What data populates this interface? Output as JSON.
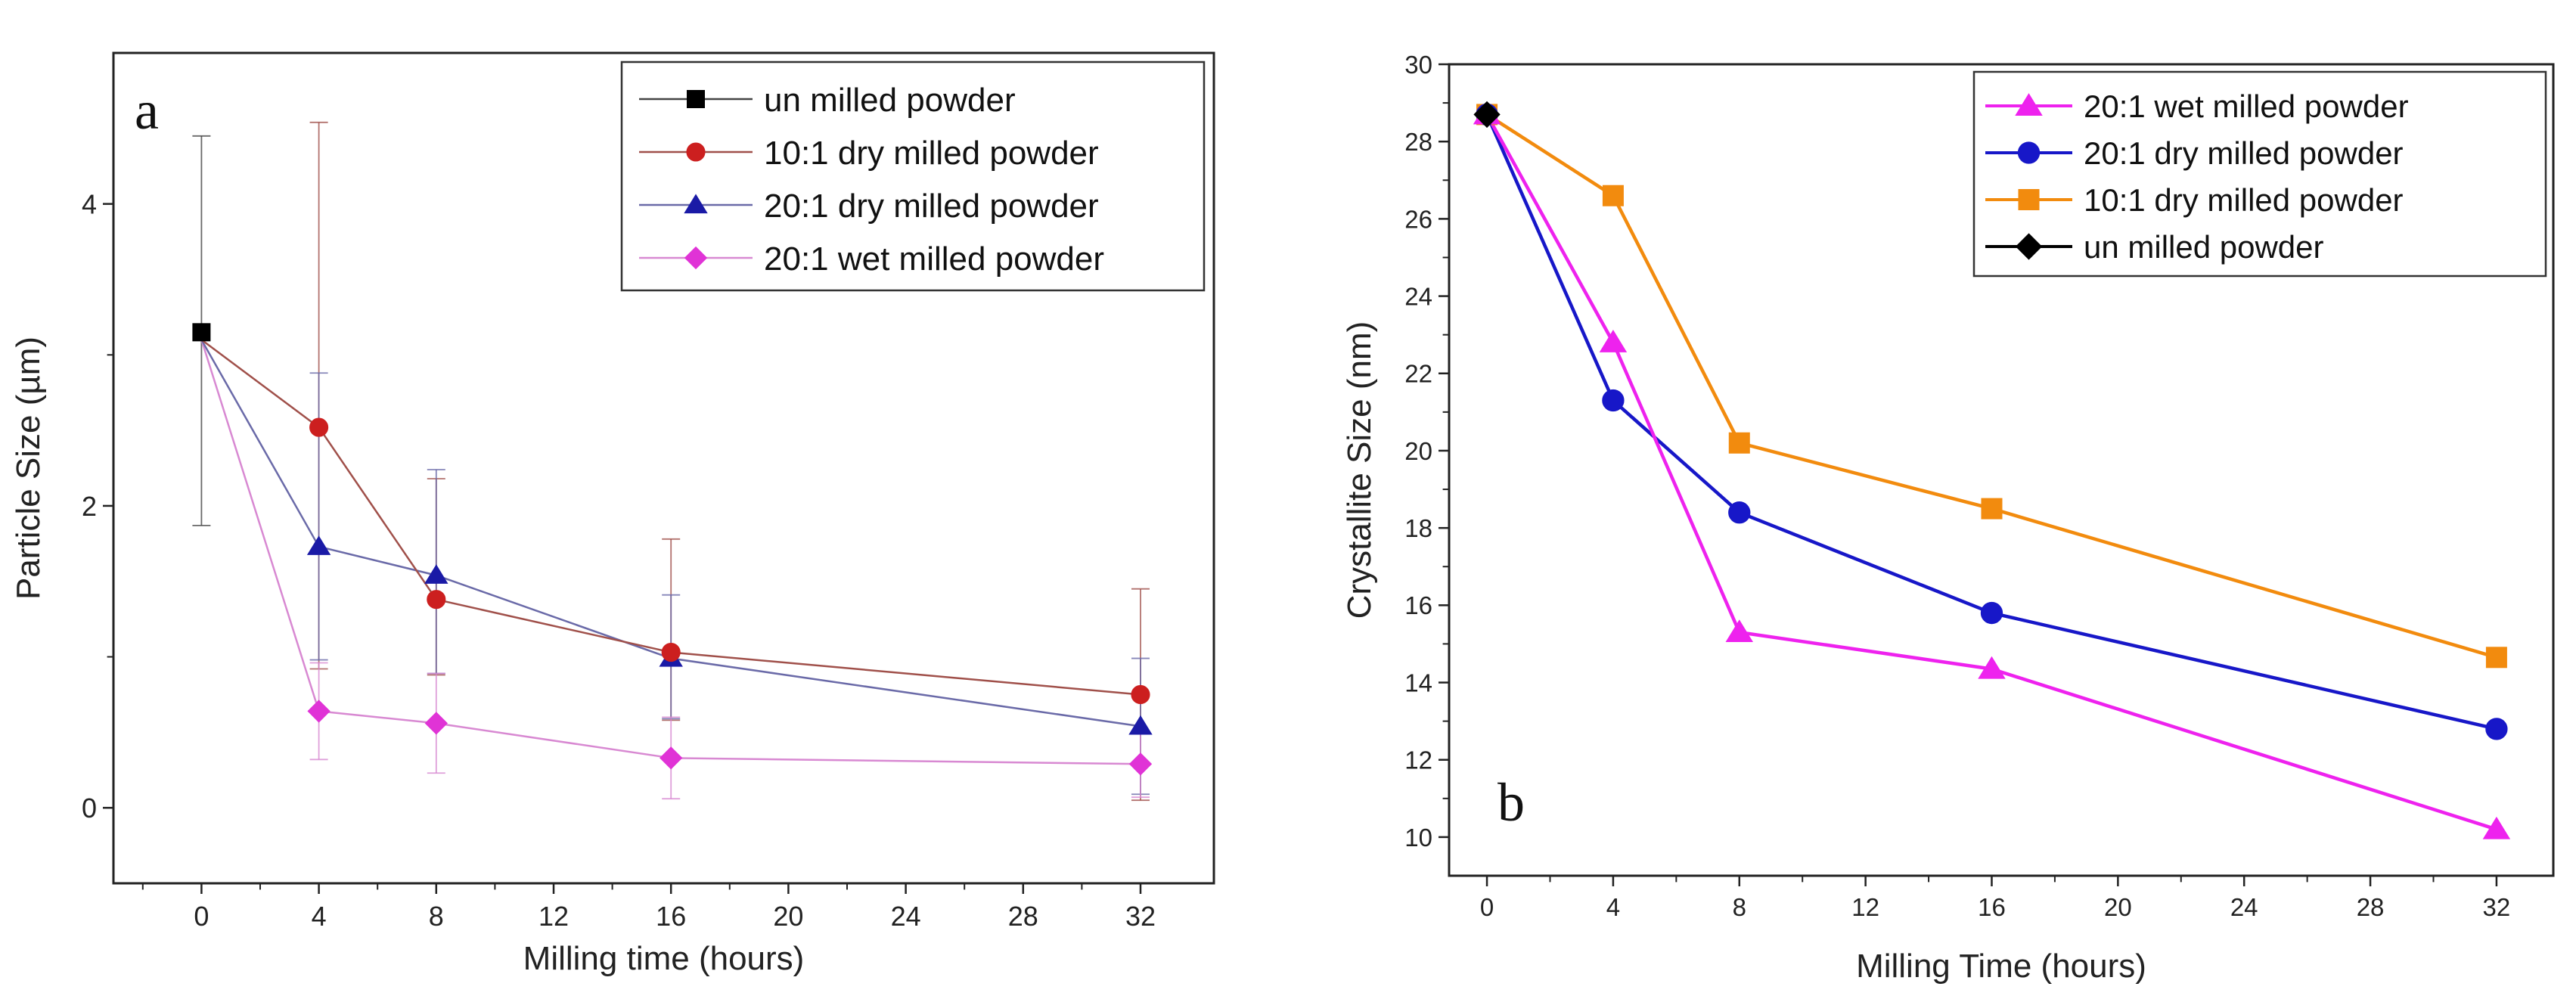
{
  "chart_data": [
    {
      "type": "line",
      "panel_label": "a",
      "title": "",
      "xlabel": "Milling time (hours)",
      "ylabel": "Particle Size (µm)",
      "xlim": [
        -3,
        34.5
      ],
      "ylim": [
        -0.5,
        5.0
      ],
      "xticks": [
        0,
        4,
        8,
        12,
        16,
        20,
        24,
        28,
        32
      ],
      "yticks": [
        0,
        2,
        4
      ],
      "x_tick_labels": [
        "0",
        "4",
        "8",
        "12",
        "16",
        "20",
        "24",
        "28",
        "32"
      ],
      "y_tick_labels": [
        "0",
        "2",
        "4"
      ],
      "legend_position": "top-right",
      "series": [
        {
          "name": "un milled powder",
          "color": "#000000",
          "line_color": "#444444",
          "marker": "square",
          "x": [
            0
          ],
          "values": [
            3.15
          ],
          "err_low": [
            1.28
          ],
          "err_high": [
            1.3
          ],
          "legend_only_line": true
        },
        {
          "name": "10:1 dry milled powder",
          "color": "#cc1f1f",
          "line_color": "#a0504a",
          "marker": "circle",
          "x": [
            0,
            4,
            8,
            16,
            32
          ],
          "values": [
            3.1,
            2.52,
            1.38,
            1.03,
            0.75
          ],
          "err_low": [
            0,
            1.6,
            0.5,
            0.45,
            0.7
          ],
          "err_high": [
            0,
            2.02,
            0.8,
            0.75,
            0.7
          ]
        },
        {
          "name": "20:1 dry milled powder",
          "color": "#1a1aa6",
          "line_color": "#6a6aa8",
          "marker": "triangle",
          "x": [
            0,
            4,
            8,
            16,
            32
          ],
          "values": [
            3.1,
            1.73,
            1.54,
            0.99,
            0.54
          ],
          "err_low": [
            0,
            0.75,
            0.65,
            0.4,
            0.45
          ],
          "err_high": [
            0,
            1.15,
            0.7,
            0.42,
            0.45
          ]
        },
        {
          "name": "20:1 wet milled powder",
          "color": "#e033d6",
          "line_color": "#d889d2",
          "marker": "diamond",
          "x": [
            0,
            4,
            8,
            16,
            32
          ],
          "values": [
            3.1,
            0.64,
            0.56,
            0.33,
            0.29
          ],
          "err_low": [
            0,
            0.32,
            0.33,
            0.27,
            0.22
          ],
          "err_high": [
            0,
            0.32,
            0.33,
            0.27,
            0.22
          ]
        }
      ]
    },
    {
      "type": "line",
      "panel_label": "b",
      "title": "",
      "xlabel": "Milling Time (hours)",
      "ylabel": "Crystallite Size (nm)",
      "xlim": [
        -1.2,
        33.8
      ],
      "ylim": [
        9,
        30
      ],
      "xticks": [
        0,
        4,
        8,
        12,
        16,
        20,
        24,
        28,
        32
      ],
      "yticks": [
        10,
        12,
        14,
        16,
        18,
        20,
        22,
        24,
        26,
        28,
        30
      ],
      "x_tick_labels": [
        "0",
        "4",
        "8",
        "12",
        "16",
        "20",
        "24",
        "28",
        "32"
      ],
      "y_tick_labels": [
        "10",
        "12",
        "14",
        "16",
        "18",
        "20",
        "22",
        "24",
        "26",
        "28",
        "30"
      ],
      "legend_position": "top-right",
      "series": [
        {
          "name": "20:1 wet milled powder",
          "color": "#ee22ee",
          "marker": "triangle",
          "x": [
            0,
            4,
            8,
            16,
            32
          ],
          "values": [
            28.7,
            22.8,
            15.3,
            14.35,
            10.2
          ]
        },
        {
          "name": "20:1 dry milled powder",
          "color": "#1717c8",
          "marker": "circle",
          "x": [
            0,
            4,
            8,
            16,
            32
          ],
          "values": [
            28.7,
            21.3,
            18.4,
            15.8,
            12.8
          ]
        },
        {
          "name": "10:1 dry milled powder",
          "color": "#f28b0e",
          "marker": "square",
          "x": [
            0,
            4,
            8,
            16,
            32
          ],
          "values": [
            28.7,
            26.6,
            20.2,
            18.5,
            14.65
          ]
        },
        {
          "name": "un milled powder",
          "color": "#000000",
          "marker": "diamond",
          "x": [
            0
          ],
          "values": [
            28.7
          ]
        }
      ]
    }
  ]
}
